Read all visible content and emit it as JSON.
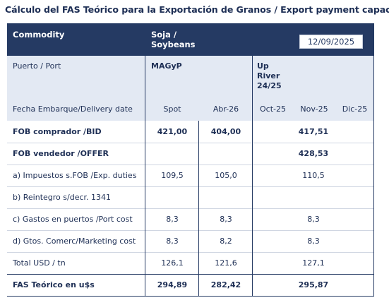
{
  "title": "Cálculo del FAS Teórico para la Exportación de Granos / Export payment capacity",
  "header": {
    "commodity_label": "Commodity",
    "commodity_value_1": "Soja /",
    "commodity_value_2": "Soybeans",
    "date": "12/09/2025"
  },
  "port_row": {
    "label": "Puerto / Port",
    "col1": "MAGyP",
    "col2_line1": "Up",
    "col2_line2": "River",
    "col2_line3": "24/25"
  },
  "dates_row": {
    "label": "Fecha Embarque/Delivery date",
    "spot": "Spot",
    "abr": "Abr-26",
    "oct": "Oct-25",
    "nov": "Nov-25",
    "dic": "Dic-25"
  },
  "rows": [
    {
      "label": "FOB comprador /BID",
      "spot": "421,00",
      "abr": "404,00",
      "up": "417,51"
    },
    {
      "label": "FOB vendedor /OFFER",
      "spot": "",
      "abr": "",
      "up": "428,53"
    },
    {
      "label": "a) Impuestos s.FOB /Exp. duties",
      "spot": "109,5",
      "abr": "105,0",
      "up": "110,5"
    },
    {
      "label": "b) Reintegro s/decr. 1341",
      "spot": "",
      "abr": "",
      "up": ""
    },
    {
      "label": "c) Gastos en puertos /Port cost",
      "spot": "8,3",
      "abr": "8,3",
      "up": "8,3"
    },
    {
      "label": "d) Gtos. Comerc/Marketing cost",
      "spot": "8,3",
      "abr": "8,2",
      "up": "8,3"
    },
    {
      "label": "Total USD / tn",
      "spot": "126,1",
      "abr": "121,6",
      "up": "127,1"
    },
    {
      "label": "FAS Teórico en u$s",
      "spot": "294,89",
      "abr": "282,42",
      "up": "295,87"
    }
  ]
}
